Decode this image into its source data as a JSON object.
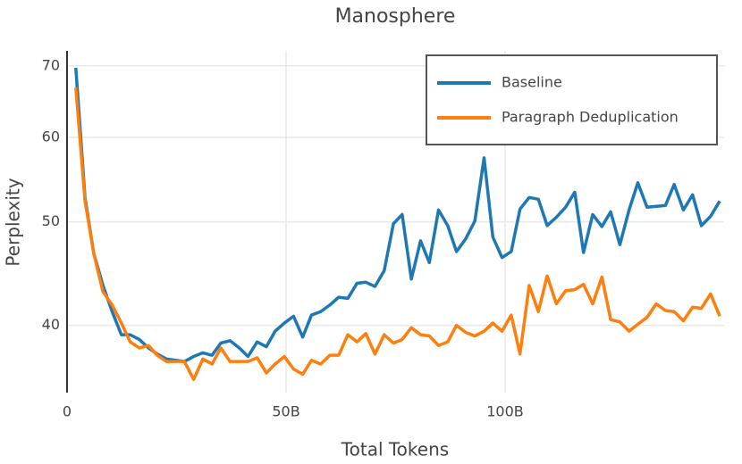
{
  "chart_data": {
    "type": "line",
    "title": "Manosphere",
    "x_label": "Total Tokens",
    "y_label": "Perplexity",
    "x": [
      2.0,
      4.1,
      6.1,
      8.2,
      10.3,
      12.4,
      14.4,
      16.5,
      18.6,
      20.6,
      22.7,
      24.8,
      26.8,
      28.9,
      31.0,
      33.1,
      35.1,
      37.2,
      39.3,
      41.3,
      43.4,
      45.5,
      47.5,
      49.6,
      51.7,
      53.8,
      55.8,
      57.9,
      60.0,
      62.0,
      64.1,
      66.2,
      68.2,
      70.3,
      72.4,
      74.5,
      76.5,
      78.6,
      80.7,
      82.7,
      84.8,
      86.9,
      88.9,
      91.0,
      93.1,
      95.2,
      97.2,
      99.3,
      101.4,
      103.4,
      105.5,
      107.6,
      109.6,
      111.7,
      113.8,
      115.9,
      117.9,
      120.0,
      122.1,
      124.1,
      126.2,
      128.3,
      130.3,
      132.4,
      134.5,
      136.6,
      138.6,
      140.7,
      142.8,
      144.8,
      146.9,
      149.0
    ],
    "series": [
      {
        "name": "Baseline",
        "color": "#1f77b4",
        "values": [
          69.7,
          52.7,
          46.7,
          43.6,
          41.2,
          39.2,
          39.2,
          38.8,
          38.1,
          37.6,
          37.2,
          37.1,
          37.0,
          37.4,
          37.7,
          37.5,
          38.5,
          38.7,
          38.1,
          37.4,
          38.6,
          38.2,
          39.5,
          40.2,
          40.8,
          39.0,
          40.9,
          41.2,
          41.8,
          42.5,
          42.4,
          43.8,
          43.9,
          43.5,
          45.0,
          49.8,
          50.8,
          44.2,
          48.0,
          45.8,
          51.3,
          49.6,
          46.9,
          48.2,
          50.1,
          57.4,
          48.4,
          46.3,
          46.9,
          51.4,
          52.7,
          52.5,
          49.6,
          50.5,
          51.6,
          53.3,
          46.8,
          50.8,
          49.5,
          51.1,
          47.6,
          51.3,
          54.4,
          51.6,
          51.7,
          51.8,
          54.2,
          51.3,
          53.0,
          49.6,
          50.6,
          52.3
        ]
      },
      {
        "name": "Paragraph Deduplication",
        "color": "#ff7f0e",
        "values": [
          66.8,
          52.3,
          46.7,
          43.0,
          41.8,
          40.2,
          38.6,
          38.1,
          38.3,
          37.5,
          37.0,
          37.0,
          37.0,
          35.6,
          37.2,
          36.8,
          38.1,
          37.0,
          37.0,
          37.0,
          37.3,
          36.1,
          36.8,
          37.4,
          36.4,
          36.0,
          37.1,
          36.8,
          37.5,
          37.5,
          39.2,
          38.6,
          39.3,
          37.6,
          39.2,
          38.5,
          38.8,
          39.8,
          39.2,
          39.1,
          38.3,
          38.6,
          40.0,
          39.4,
          39.1,
          39.5,
          40.2,
          39.5,
          40.9,
          37.6,
          43.6,
          41.2,
          44.5,
          41.9,
          43.1,
          43.2,
          43.7,
          41.9,
          44.4,
          40.5,
          40.3,
          39.5,
          40.1,
          40.7,
          41.9,
          41.3,
          41.2,
          40.4,
          41.6,
          41.5,
          42.8,
          40.8
        ]
      }
    ],
    "xlim": [
      0,
      150
    ],
    "xticks": [
      0,
      {
        "value": 50,
        "label": "50B"
      },
      {
        "value": 100,
        "label": "100B"
      }
    ],
    "ylim": [
      34.6,
      72.3
    ],
    "yticks": [
      40,
      50,
      60,
      70
    ],
    "log_y": true,
    "grid": true,
    "legend": "upper right"
  }
}
